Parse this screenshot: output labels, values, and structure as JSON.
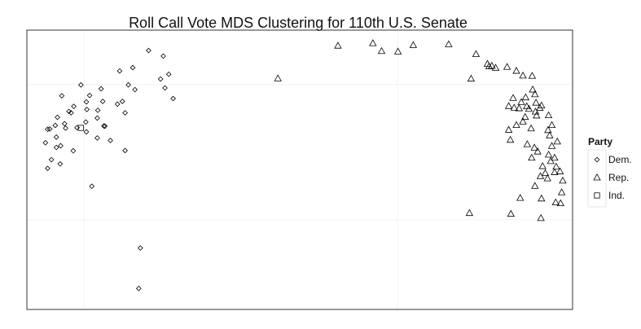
{
  "chart_data": {
    "type": "scatter",
    "title": "Roll Call Vote MDS Clustering for 110th U.S. Senate",
    "xlabel": "",
    "ylabel": "",
    "xlim": [
      0,
      100
    ],
    "ylim": [
      0,
      100
    ],
    "grid": true,
    "legend": {
      "title": "Party",
      "placement": "right"
    },
    "series": [
      {
        "name": "Dem.",
        "marker": "diamond",
        "color": "#000000",
        "points": [
          [
            22.3,
            92.7
          ],
          [
            25.0,
            90.7
          ],
          [
            19.4,
            86.6
          ],
          [
            17.0,
            85.4
          ],
          [
            26.0,
            84.2
          ],
          [
            24.5,
            82.5
          ],
          [
            18.6,
            80.4
          ],
          [
            19.8,
            78.7
          ],
          [
            13.6,
            79.0
          ],
          [
            11.5,
            76.6
          ],
          [
            9.9,
            80.4
          ],
          [
            25.3,
            79.3
          ],
          [
            10.9,
            74.3
          ],
          [
            13.9,
            74.5
          ],
          [
            26.8,
            75.5
          ],
          [
            8.6,
            72.7
          ],
          [
            11.0,
            71.6
          ],
          [
            16.6,
            73.5
          ],
          [
            18.0,
            70.4
          ],
          [
            17.5,
            74.5
          ],
          [
            12.9,
            68.5
          ],
          [
            8.1,
            70.4
          ],
          [
            14.3,
            65.6
          ],
          [
            13.0,
            71.3
          ],
          [
            10.8,
            67.1
          ],
          [
            7.7,
            70.9
          ],
          [
            10.9,
            63.6
          ],
          [
            5.6,
            68.8
          ],
          [
            6.9,
            66.5
          ],
          [
            5.2,
            65.9
          ],
          [
            7.1,
            64.9
          ],
          [
            9.2,
            65.1
          ],
          [
            4.2,
            64.6
          ],
          [
            5.4,
            61.7
          ],
          [
            6.2,
            58.6
          ],
          [
            3.8,
            64.5
          ],
          [
            3.4,
            59.7
          ],
          [
            5.4,
            58.0
          ],
          [
            8.5,
            56.8
          ],
          [
            4.5,
            53.6
          ],
          [
            6.1,
            52.1
          ],
          [
            3.8,
            50.5
          ],
          [
            18.0,
            56.9
          ],
          [
            15.3,
            60.5
          ],
          [
            14.1,
            65.7
          ],
          [
            12.9,
            61.4
          ],
          [
            6.4,
            76.5
          ],
          [
            11.9,
            44.1
          ],
          [
            20.8,
            22.0
          ],
          [
            20.5,
            7.5
          ]
        ]
      },
      {
        "name": "Rep.",
        "marker": "triangle",
        "color": "#000000",
        "points": [
          [
            63.4,
            95.3
          ],
          [
            57.0,
            94.4
          ],
          [
            65.0,
            92.5
          ],
          [
            68.0,
            92.3
          ],
          [
            70.8,
            94.6
          ],
          [
            77.3,
            94.9
          ],
          [
            82.3,
            91.4
          ],
          [
            84.4,
            87.9
          ],
          [
            84.7,
            87.0
          ],
          [
            85.9,
            86.5
          ],
          [
            81.4,
            82.6
          ],
          [
            88.0,
            86.8
          ],
          [
            89.7,
            85.4
          ],
          [
            90.9,
            83.7
          ],
          [
            92.6,
            83.6
          ],
          [
            92.7,
            78.7
          ],
          [
            93.1,
            77.0
          ],
          [
            91.4,
            75.9
          ],
          [
            89.1,
            75.7
          ],
          [
            90.6,
            74.2
          ],
          [
            90.2,
            72.0
          ],
          [
            93.3,
            74.0
          ],
          [
            92.0,
            71.8
          ],
          [
            94.3,
            73.0
          ],
          [
            88.3,
            72.8
          ],
          [
            89.3,
            72.2
          ],
          [
            91.6,
            72.7
          ],
          [
            94.0,
            72.1
          ],
          [
            93.2,
            70.8
          ],
          [
            93.4,
            69.4
          ],
          [
            95.6,
            69.5
          ],
          [
            91.3,
            68.9
          ],
          [
            90.9,
            67.2
          ],
          [
            89.7,
            66.0
          ],
          [
            92.4,
            64.8
          ],
          [
            95.5,
            64.2
          ],
          [
            88.3,
            64.3
          ],
          [
            96.2,
            66.0
          ],
          [
            95.8,
            62.3
          ],
          [
            88.6,
            60.7
          ],
          [
            91.7,
            59.1
          ],
          [
            97.2,
            60.1
          ],
          [
            93.0,
            57.9
          ],
          [
            92.5,
            54.3
          ],
          [
            93.6,
            56.5
          ],
          [
            95.6,
            55.4
          ],
          [
            96.2,
            58.5
          ],
          [
            96.0,
            53.1
          ],
          [
            96.7,
            54.3
          ],
          [
            94.5,
            51.3
          ],
          [
            96.7,
            49.1
          ],
          [
            97.7,
            49.4
          ],
          [
            95.0,
            48.8
          ],
          [
            94.1,
            47.7
          ],
          [
            95.4,
            46.9
          ],
          [
            98.2,
            46.1
          ],
          [
            93.1,
            44.2
          ],
          [
            97.0,
            51.1
          ],
          [
            98.0,
            41.9
          ],
          [
            90.4,
            39.9
          ],
          [
            94.3,
            39.7
          ],
          [
            96.9,
            38.3
          ],
          [
            97.8,
            38.0
          ],
          [
            81.1,
            34.5
          ],
          [
            88.7,
            34.2
          ],
          [
            94.2,
            32.7
          ],
          [
            85.2,
            87.2
          ],
          [
            46.0,
            82.7
          ]
        ]
      },
      {
        "name": "Ind.",
        "marker": "square",
        "color": "#000000",
        "points": [
          [
            9.9,
            65.0
          ]
        ]
      }
    ]
  }
}
